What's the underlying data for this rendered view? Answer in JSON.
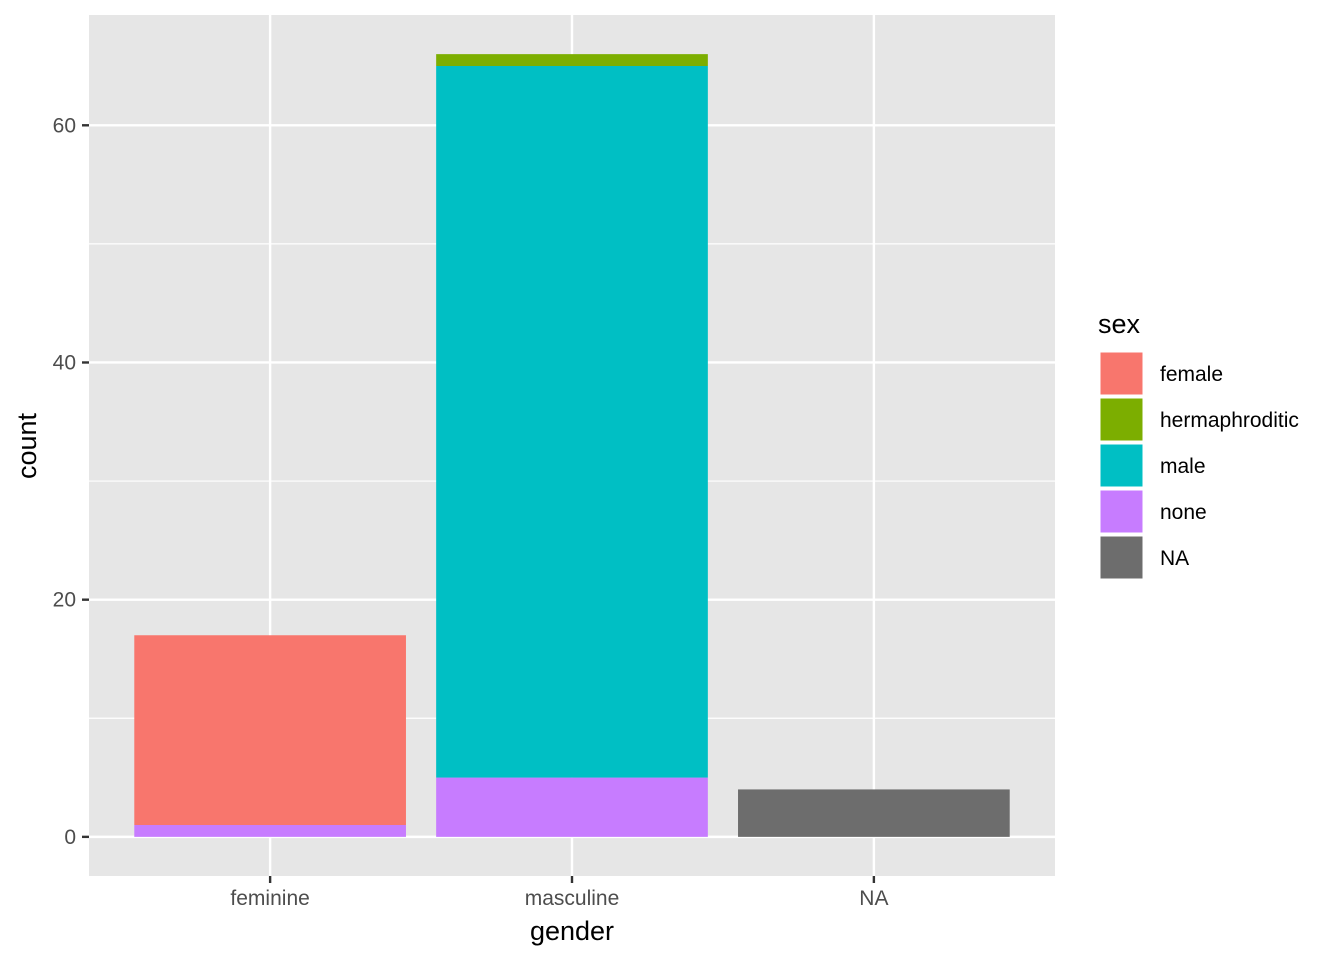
{
  "chart_data": {
    "type": "bar",
    "stacked": true,
    "categories": [
      "feminine",
      "masculine",
      "NA"
    ],
    "series": [
      {
        "name": "female",
        "color": "#F8766D",
        "values": [
          16,
          0,
          0
        ]
      },
      {
        "name": "hermaphroditic",
        "color": "#7CAE00",
        "values": [
          0,
          1,
          0
        ]
      },
      {
        "name": "male",
        "color": "#00BFC4",
        "values": [
          0,
          60,
          0
        ]
      },
      {
        "name": "none",
        "color": "#C77CFF",
        "values": [
          1,
          5,
          0
        ]
      },
      {
        "name": "NA",
        "color": "#6D6D6D",
        "values": [
          0,
          0,
          4
        ]
      }
    ],
    "stack_order": [
      "female",
      "hermaphroditic",
      "male",
      "none",
      "NA"
    ],
    "xlabel": "gender",
    "ylabel": "count",
    "ylim": [
      -3.3,
      69.3
    ],
    "y_ticks": [
      0,
      20,
      40,
      60
    ],
    "y_minor_ticks": [
      10,
      30,
      50
    ],
    "legend": {
      "title": "sex",
      "position": "right"
    },
    "grid": true,
    "panel_background": "#E6E6E6",
    "grid_color": "#FFFFFF"
  }
}
